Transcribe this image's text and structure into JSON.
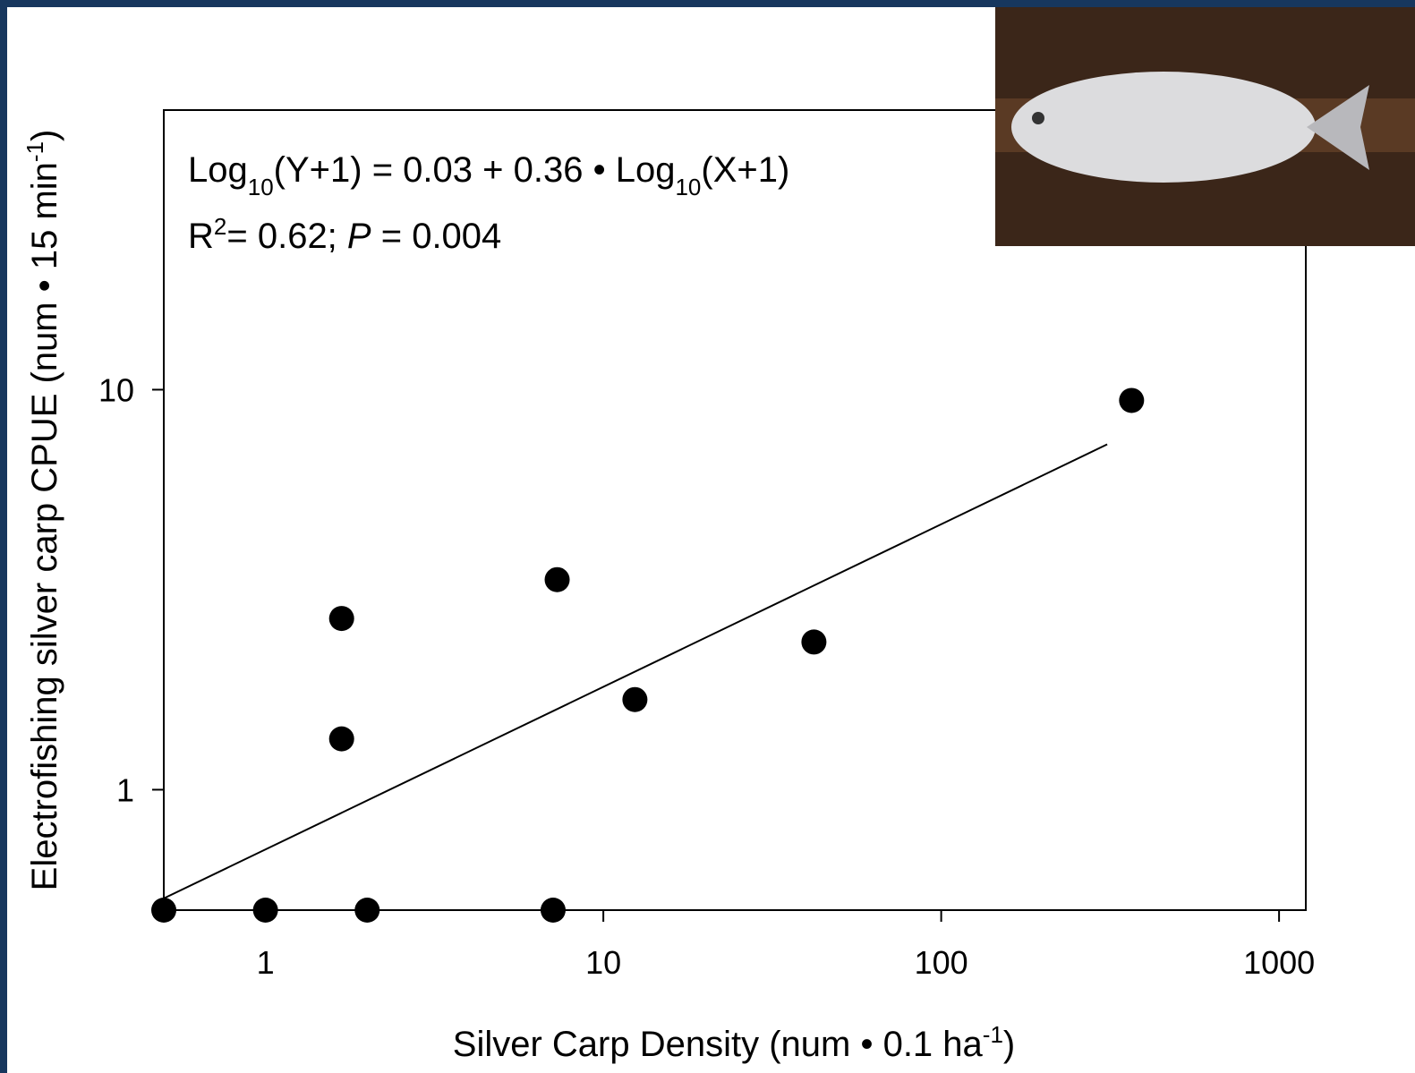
{
  "chart_data": {
    "type": "scatter",
    "equation": [
      "Log",
      "10",
      "(Y+1) = 0.03 + 0.36 • Log",
      "10",
      "(X+1)"
    ],
    "stats": [
      "R",
      "2",
      "= 0.62; ",
      "P",
      " = 0.004"
    ],
    "x_label": [
      "Silver Carp Density (num • 0.1 ha",
      "-1",
      ")"
    ],
    "y_label": [
      "Electrofishing silver carp CPUE (num • 15 min",
      "-1",
      ")"
    ],
    "x_log": true,
    "y_log": true,
    "xlim": [
      0.5,
      1200
    ],
    "ylim": [
      0.5,
      50
    ],
    "xticks": [
      1,
      10,
      100,
      1000
    ],
    "yticks": [
      1,
      10
    ],
    "grid": false,
    "color": "#000000",
    "points": {
      "x": [
        0.5,
        1,
        1.68,
        1.68,
        2.0,
        7.1,
        7.3,
        12.4,
        42,
        366
      ],
      "y": [
        0.5,
        0.5,
        2.68,
        1.34,
        0.5,
        0.5,
        3.35,
        1.68,
        2.34,
        9.4
      ]
    },
    "trend": {
      "x": [
        0.5,
        310
      ],
      "y": [
        0.535,
        7.3
      ]
    }
  }
}
